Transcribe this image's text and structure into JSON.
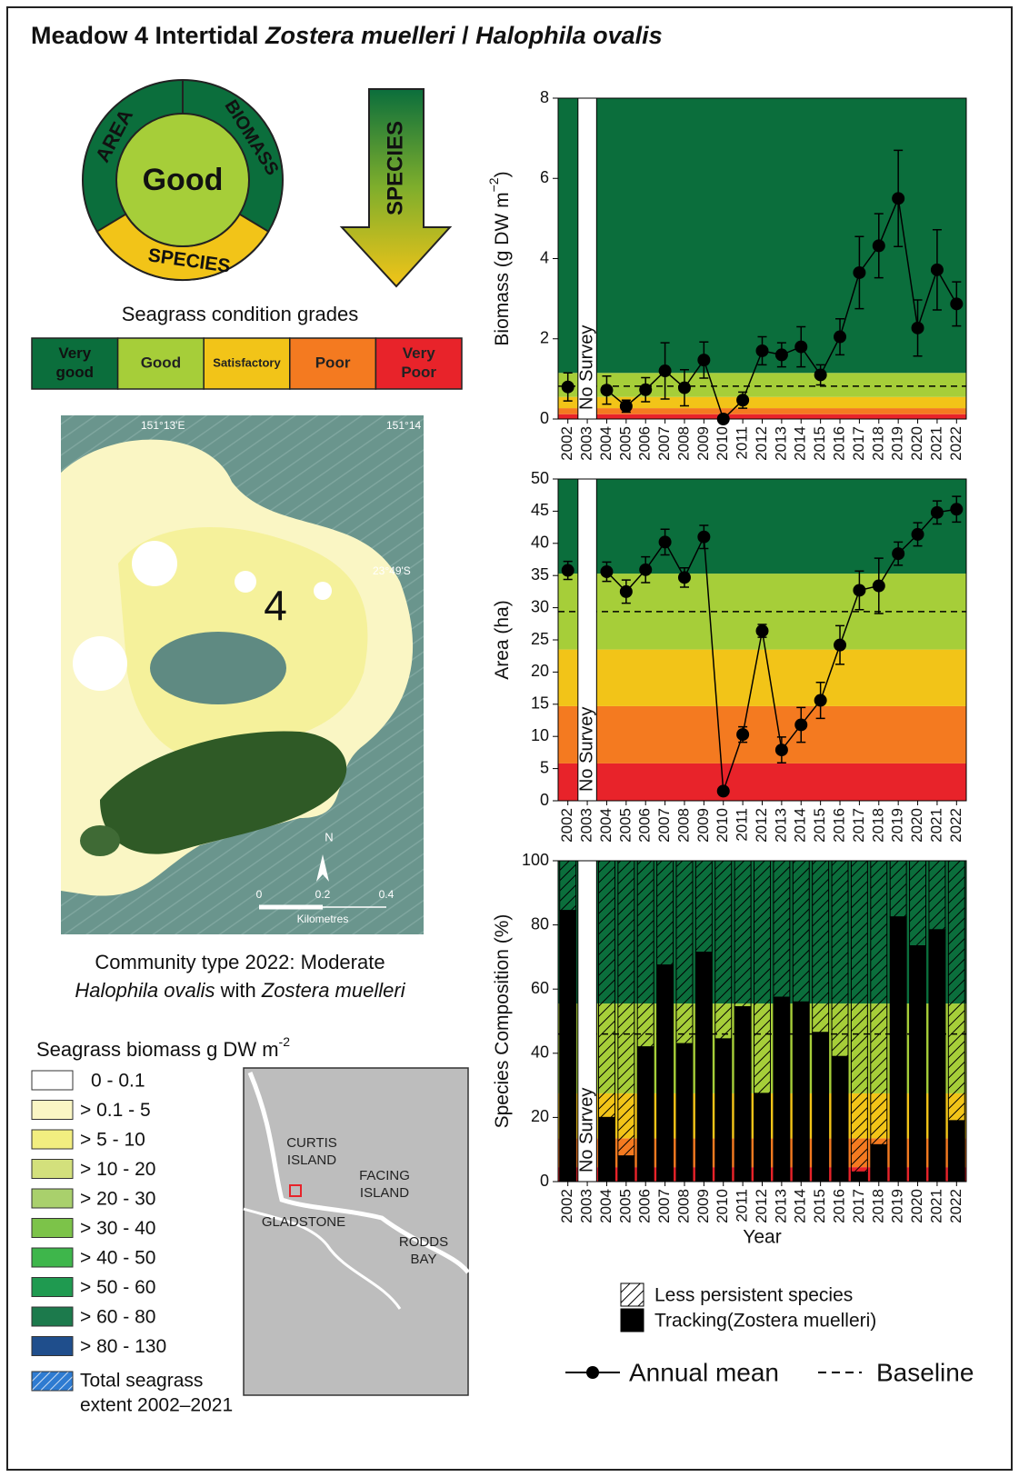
{
  "title": [
    "Meadow 4 Intertidal ",
    "Zostera muelleri",
    " / ",
    "Halophila ovalis"
  ],
  "wheel": {
    "left": "AREA",
    "right": "BIOMASS",
    "center": "Good",
    "bottom": "SPECIES"
  },
  "arrow": "SPECIES",
  "grades": {
    "title": "Seagrass condition grades",
    "items": [
      {
        "lines": [
          "Very",
          "good"
        ],
        "color": "#0b6e3c"
      },
      {
        "lines": [
          "Good"
        ],
        "color": "#a6ce39"
      },
      {
        "lines": [
          "Satisfactory"
        ],
        "color": "#f2c418"
      },
      {
        "lines": [
          "Poor"
        ],
        "color": "#f47a20"
      },
      {
        "lines": [
          "Very",
          "Poor"
        ],
        "color": "#e8232a"
      }
    ]
  },
  "map": {
    "lon1": "151°13'E",
    "lon2": "151°14",
    "lat": "23°49'S",
    "meadow": "4",
    "north": "N",
    "scale": [
      "0",
      "0.2",
      "0.4"
    ],
    "scale_unit": "Kilometres"
  },
  "community": [
    "Community type 2022: Moderate",
    "Halophila ovalis",
    " with ",
    "Zostera muelleri"
  ],
  "biomass_legend": {
    "title": "Seagrass biomass g DW m",
    "title_sup": "-2",
    "items": [
      {
        "label": "0 - 0.1",
        "color": "#ffffff"
      },
      {
        "label": "> 0.1 - 5",
        "color": "#faf6c4"
      },
      {
        "label": "> 5 - 10",
        "color": "#f2ee80"
      },
      {
        "label": "> 10 - 20",
        "color": "#d3e07c"
      },
      {
        "label": "> 20 - 30",
        "color": "#a9d06c"
      },
      {
        "label": "> 30 - 40",
        "color": "#7cc349"
      },
      {
        "label": "> 40 - 50",
        "color": "#3eb64b"
      },
      {
        "label": "> 50 - 60",
        "color": "#1f9a50"
      },
      {
        "label": "> 60 - 80",
        "color": "#1c7a4c"
      },
      {
        "label": "> 80 - 130",
        "color": "#1f4e8c"
      }
    ],
    "extent": [
      "Total seagrass",
      "extent  2002–2021"
    ]
  },
  "inset": [
    "CURTIS",
    "ISLAND",
    "FACING",
    "ISLAND",
    "GLADSTONE",
    "RODDS",
    "BAY"
  ],
  "chart_data": [
    {
      "type": "line",
      "ylabel": {
        "text": "Biomass (g DW m",
        "sup": "−2",
        "end": ")"
      },
      "annotation": "No Survey",
      "categories": [
        "2002",
        "2003",
        "2004",
        "2005",
        "2006",
        "2007",
        "2008",
        "2009",
        "2010",
        "2011",
        "2012",
        "2013",
        "2014",
        "2015",
        "2016",
        "2017",
        "2018",
        "2019",
        "2020",
        "2021",
        "2022"
      ],
      "series": [
        {
          "name": "Annual mean",
          "color": "#000000",
          "values": [
            0.8,
            null,
            0.72,
            0.32,
            0.73,
            1.2,
            0.78,
            1.47,
            0.0,
            0.47,
            1.7,
            1.6,
            1.8,
            1.1,
            2.05,
            3.65,
            4.32,
            5.5,
            2.27,
            3.72,
            2.87
          ],
          "errors": [
            0.35,
            null,
            0.35,
            0.15,
            0.3,
            0.7,
            0.45,
            0.45,
            0.0,
            0.2,
            0.35,
            0.3,
            0.5,
            0.25,
            0.45,
            0.9,
            0.8,
            1.2,
            0.7,
            1.0,
            0.55
          ]
        }
      ],
      "baseline": {
        "name": "Baseline",
        "value": 0.82
      },
      "bands": [
        {
          "from": 0,
          "to": 0.12,
          "color": "#e8232a"
        },
        {
          "from": 0.12,
          "to": 0.27,
          "color": "#f47a20"
        },
        {
          "from": 0.27,
          "to": 0.55,
          "color": "#f2c418"
        },
        {
          "from": 0.55,
          "to": 1.15,
          "color": "#a6ce39"
        },
        {
          "from": 1.15,
          "to": 8,
          "color": "#0b6e3c"
        }
      ],
      "ylim": [
        0,
        8
      ],
      "yticks": [
        0,
        2,
        4,
        6,
        8
      ]
    },
    {
      "type": "line",
      "ylabel": {
        "text": "Area (ha)"
      },
      "annotation": "No Survey",
      "categories": [
        "2002",
        "2003",
        "2004",
        "2005",
        "2006",
        "2007",
        "2008",
        "2009",
        "2010",
        "2011",
        "2012",
        "2013",
        "2014",
        "2015",
        "2016",
        "2017",
        "2018",
        "2019",
        "2020",
        "2021",
        "2022"
      ],
      "series": [
        {
          "color": "#000000",
          "values": [
            35.8,
            null,
            35.6,
            32.5,
            35.9,
            40.2,
            34.7,
            41,
            1.5,
            10.3,
            26.4,
            7.9,
            11.8,
            15.6,
            24.2,
            32.7,
            33.4,
            38.4,
            41.4,
            44.8,
            45.3
          ],
          "errors": [
            1.4,
            null,
            1.5,
            1.8,
            2,
            2,
            1.5,
            1.8,
            0.5,
            1.2,
            1,
            2,
            2.7,
            2.8,
            3,
            3,
            4.3,
            1.8,
            1.8,
            1.8,
            2
          ]
        }
      ],
      "baseline": {
        "value": 29.4
      },
      "bands": [
        {
          "from": 0,
          "to": 5.8,
          "color": "#e8232a"
        },
        {
          "from": 5.8,
          "to": 14.7,
          "color": "#f47a20"
        },
        {
          "from": 14.7,
          "to": 23.5,
          "color": "#f2c418"
        },
        {
          "from": 23.5,
          "to": 35.3,
          "color": "#a6ce39"
        },
        {
          "from": 35.3,
          "to": 50,
          "color": "#0b6e3c"
        }
      ],
      "ylim": [
        0,
        50
      ],
      "yticks": [
        0,
        5,
        10,
        15,
        20,
        25,
        30,
        35,
        40,
        45,
        50
      ]
    },
    {
      "type": "bar",
      "ylabel": {
        "text": "Species Composition (%)"
      },
      "xlabel": "Year",
      "annotation": "No Survey",
      "categories": [
        "2002",
        "2003",
        "2004",
        "2005",
        "2006",
        "2007",
        "2008",
        "2009",
        "2010",
        "2011",
        "2012",
        "2013",
        "2014",
        "2015",
        "2016",
        "2017",
        "2018",
        "2019",
        "2020",
        "2021",
        "2022"
      ],
      "series": [
        {
          "name": "Tracking(Zostera muelleri)",
          "color": "#000000",
          "values": [
            84.5,
            null,
            20,
            8,
            42,
            67.5,
            43,
            71.5,
            44.5,
            54.5,
            27.5,
            57.5,
            56,
            46.5,
            39,
            3,
            11.5,
            82.5,
            73.5,
            78.5,
            19
          ]
        },
        {
          "name": "Less persistent species",
          "color": "hatch",
          "values": [
            15.5,
            null,
            80,
            92,
            58,
            32.5,
            57,
            28.5,
            55.5,
            45.5,
            72.5,
            42.5,
            44,
            53.5,
            61,
            97,
            88.5,
            17.5,
            26.5,
            21.5,
            81
          ]
        }
      ],
      "baseline": {
        "value": 46
      },
      "bands": [
        {
          "from": 0,
          "to": 4.5,
          "color": "#e8232a"
        },
        {
          "from": 4.5,
          "to": 13.5,
          "color": "#f47a20"
        },
        {
          "from": 13.5,
          "to": 27.5,
          "color": "#f2c418"
        },
        {
          "from": 27.5,
          "to": 55.5,
          "color": "#a6ce39"
        },
        {
          "from": 55.5,
          "to": 100,
          "color": "#0b6e3c"
        }
      ],
      "ylim": [
        0,
        100
      ],
      "yticks": [
        0,
        20,
        40,
        60,
        80,
        100
      ]
    }
  ]
}
